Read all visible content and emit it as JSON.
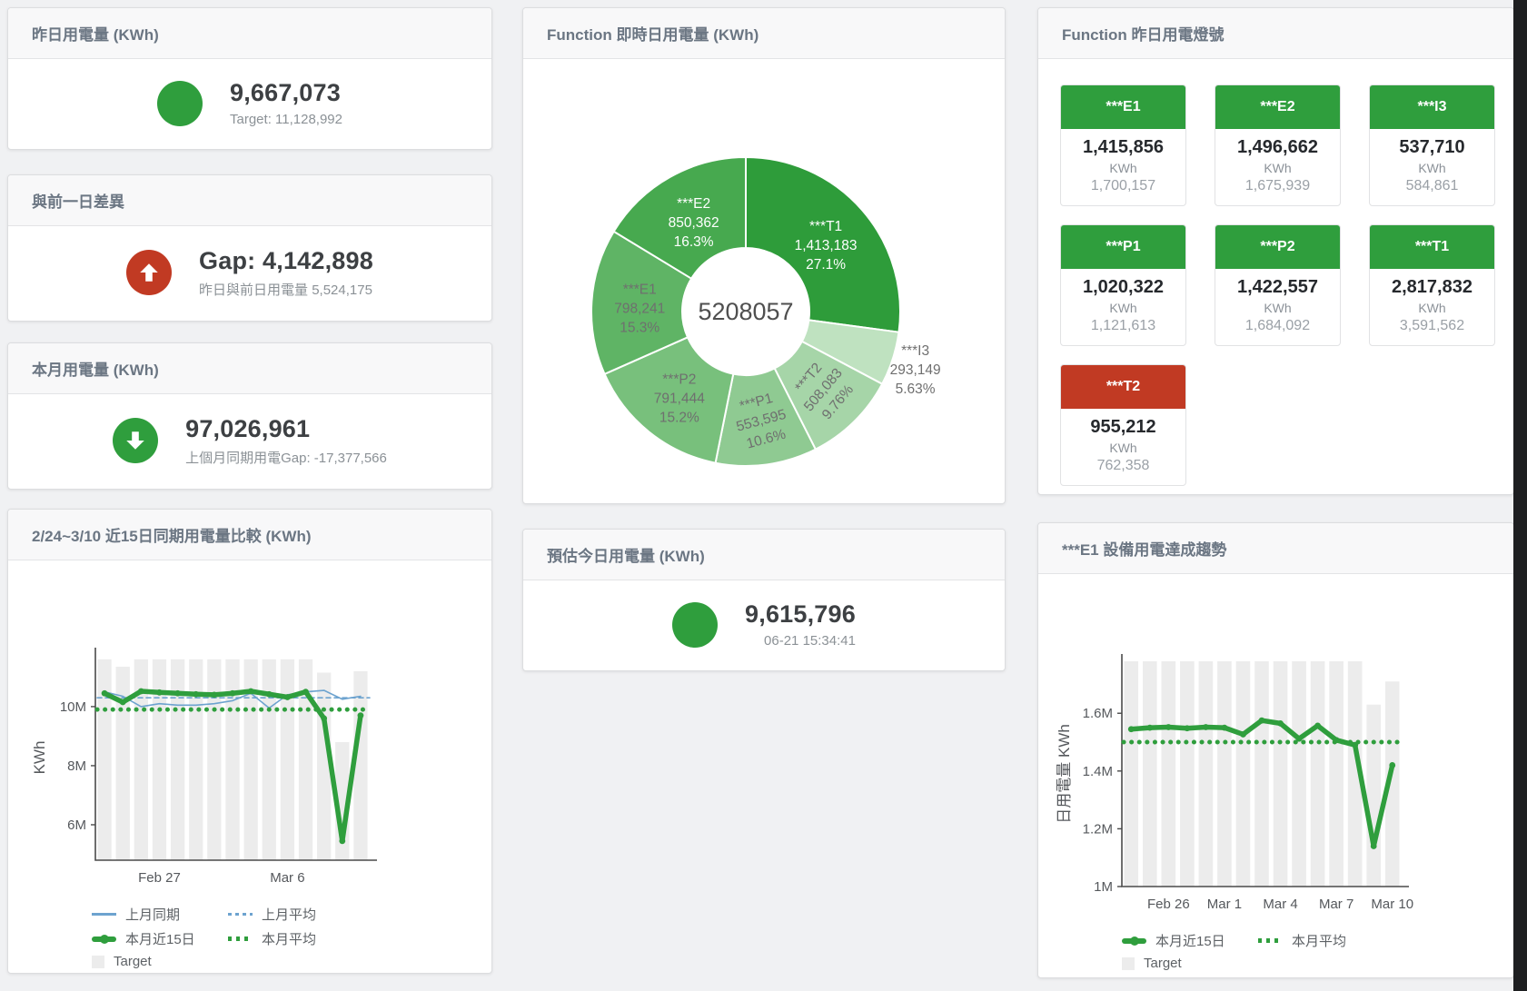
{
  "colors": {
    "green": "#2f9e3d",
    "red": "#c13a23",
    "blue": "#6da3cf",
    "target_bar": "#ececec",
    "axis": "#4a4a4a",
    "tick_text": "#55585c"
  },
  "stat_cards": [
    {
      "title": "昨日用電量 (KWh)",
      "icon": "status-circle",
      "icon_color": "#2f9e3d",
      "value": "9,667,073",
      "subtitle": "Target: 11,128,992"
    },
    {
      "title": "與前一日差異",
      "icon": "arrow-up",
      "icon_color": "#c13a23",
      "value": "Gap: 4,142,898",
      "subtitle": "昨日與前日用電量 5,524,175"
    },
    {
      "title": "本月用電量 (KWh)",
      "icon": "arrow-down",
      "icon_color": "#2f9e3d",
      "value": "97,026,961",
      "subtitle": "上個月同期用電Gap: -17,377,566"
    },
    {
      "title": "預估今日用電量 (KWh)",
      "icon": "status-circle",
      "icon_color": "#2f9e3d",
      "value": "9,615,796",
      "subtitle": "06-21 15:34:41"
    }
  ],
  "light_card": {
    "title": "Function 昨日用電燈號",
    "unit": "KWh",
    "tiles": [
      {
        "label": "***E1",
        "value": "1,415,856",
        "target": "1,700,157",
        "status": "green"
      },
      {
        "label": "***E2",
        "value": "1,496,662",
        "target": "1,675,939",
        "status": "green"
      },
      {
        "label": "***I3",
        "value": "537,710",
        "target": "584,861",
        "status": "green"
      },
      {
        "label": "***P1",
        "value": "1,020,322",
        "target": "1,121,613",
        "status": "green"
      },
      {
        "label": "***P2",
        "value": "1,422,557",
        "target": "1,684,092",
        "status": "green"
      },
      {
        "label": "***T1",
        "value": "2,817,832",
        "target": "3,591,562",
        "status": "green"
      },
      {
        "label": "***T2",
        "value": "955,212",
        "target": "762,358",
        "status": "red"
      }
    ]
  },
  "chart_data": [
    {
      "id": "realtime-donut",
      "type": "pie",
      "title": "Function 即時日用電量 (KWh)",
      "center_total": "5208057",
      "slices": [
        {
          "name": "***T1",
          "value": "1,413,183",
          "pct": 27.1,
          "pct_label": "27.1%",
          "color": "#2e9c3a",
          "label_color": "#ffffff"
        },
        {
          "name": "***I3",
          "value": "293,149",
          "pct": 5.63,
          "pct_label": "5.63%",
          "color": "#bfe2c0",
          "label_color": "#6f6f6f",
          "outside": true
        },
        {
          "name": "***T2",
          "value": "508,083",
          "pct": 9.76,
          "pct_label": "9.76%",
          "color": "#a6d5a8",
          "label_color": "#6f6f6f",
          "rotate": -50
        },
        {
          "name": "***P1",
          "value": "553,595",
          "pct": 10.6,
          "pct_label": "10.6%",
          "color": "#8fca92",
          "label_color": "#6f6f6f",
          "rotate": -15
        },
        {
          "name": "***P2",
          "value": "791,444",
          "pct": 15.2,
          "pct_label": "15.2%",
          "color": "#78c07c",
          "label_color": "#6f6f6f"
        },
        {
          "name": "***E1",
          "value": "798,241",
          "pct": 15.3,
          "pct_label": "15.3%",
          "color": "#5fb465",
          "label_color": "#6f6f6f"
        },
        {
          "name": "***E2",
          "value": "850,362",
          "pct": 16.3,
          "pct_label": "16.3%",
          "color": "#47a94f",
          "label_color": "#ffffff"
        }
      ]
    },
    {
      "id": "compare-15day",
      "type": "line",
      "title": "2/24~3/10 近15日同期用電量比較 (KWh)",
      "ylabel": "KWh",
      "y_unit": "millions KWh",
      "ylim": [
        4.8,
        11.75
      ],
      "yticks": [
        {
          "v": 6,
          "label": "6M"
        },
        {
          "v": 8,
          "label": "8M"
        },
        {
          "v": 10,
          "label": "10M"
        }
      ],
      "xticks": [
        {
          "i": 3,
          "label": "Feb 27"
        },
        {
          "i": 10,
          "label": "Mar 6"
        }
      ],
      "x_range": "Feb 24 - Mar 10 (15 days)",
      "target_bars": [
        11.6,
        11.35,
        11.6,
        11.6,
        11.6,
        11.6,
        11.6,
        11.6,
        11.6,
        11.6,
        11.6,
        11.6,
        11.15,
        8.8,
        11.2
      ],
      "series": [
        {
          "name": "上月同期",
          "style": "thin",
          "color": "#6da3cf",
          "values": [
            10.5,
            10.35,
            10.0,
            10.1,
            10.05,
            10.05,
            10.1,
            10.2,
            10.45,
            9.95,
            10.4,
            10.5,
            10.55,
            10.25,
            10.35
          ]
        },
        {
          "name": "上月平均",
          "style": "dashed",
          "color": "#6da3cf",
          "avg": 10.3
        },
        {
          "name": "本月近15日",
          "style": "thick",
          "color": "#2f9e3d",
          "values": [
            10.45,
            10.15,
            10.52,
            10.48,
            10.45,
            10.42,
            10.4,
            10.45,
            10.52,
            10.42,
            10.32,
            10.5,
            9.6,
            5.45,
            9.7
          ]
        },
        {
          "name": "本月平均",
          "style": "dotted",
          "color": "#2f9e3d",
          "avg": 9.9
        }
      ],
      "legend": [
        {
          "label": "上月同期",
          "swatch": "line-blue"
        },
        {
          "label": "上月平均",
          "swatch": "dash-blue"
        },
        {
          "label": "本月近15日",
          "swatch": "thick-green"
        },
        {
          "label": "本月平均",
          "swatch": "dot-green"
        },
        {
          "label": "Target",
          "swatch": "square-gray"
        }
      ]
    },
    {
      "id": "e1-trend",
      "type": "line",
      "title": "***E1 設備用電達成趨勢",
      "ylabel": "日用電量 KWh",
      "y_unit": "millions KWh",
      "ylim": [
        1.0,
        1.78
      ],
      "yticks": [
        {
          "v": 1,
          "label": "1M"
        },
        {
          "v": 1.2,
          "label": "1.2M"
        },
        {
          "v": 1.4,
          "label": "1.4M"
        },
        {
          "v": 1.6,
          "label": "1.6M"
        }
      ],
      "xticks": [
        {
          "i": 2,
          "label": "Feb 26"
        },
        {
          "i": 5,
          "label": "Mar 1"
        },
        {
          "i": 8,
          "label": "Mar 4"
        },
        {
          "i": 11,
          "label": "Mar 7"
        },
        {
          "i": 14,
          "label": "Mar 10"
        }
      ],
      "x_range": "Feb 24 - Mar 10 (15 days)",
      "target_bars": [
        1.78,
        1.78,
        1.78,
        1.78,
        1.78,
        1.78,
        1.78,
        1.78,
        1.78,
        1.78,
        1.78,
        1.78,
        1.78,
        1.63,
        1.71
      ],
      "series": [
        {
          "name": "本月近15日",
          "style": "thick",
          "color": "#2f9e3d",
          "values": [
            1.545,
            1.55,
            1.552,
            1.548,
            1.552,
            1.55,
            1.527,
            1.575,
            1.565,
            1.512,
            1.557,
            1.507,
            1.49,
            1.14,
            1.42
          ]
        },
        {
          "name": "本月平均",
          "style": "dotted",
          "color": "#2f9e3d",
          "avg": 1.5
        }
      ],
      "legend": [
        {
          "label": "本月近15日",
          "swatch": "thick-green"
        },
        {
          "label": "本月平均",
          "swatch": "dot-green"
        },
        {
          "label": "Target",
          "swatch": "square-gray"
        }
      ]
    }
  ]
}
